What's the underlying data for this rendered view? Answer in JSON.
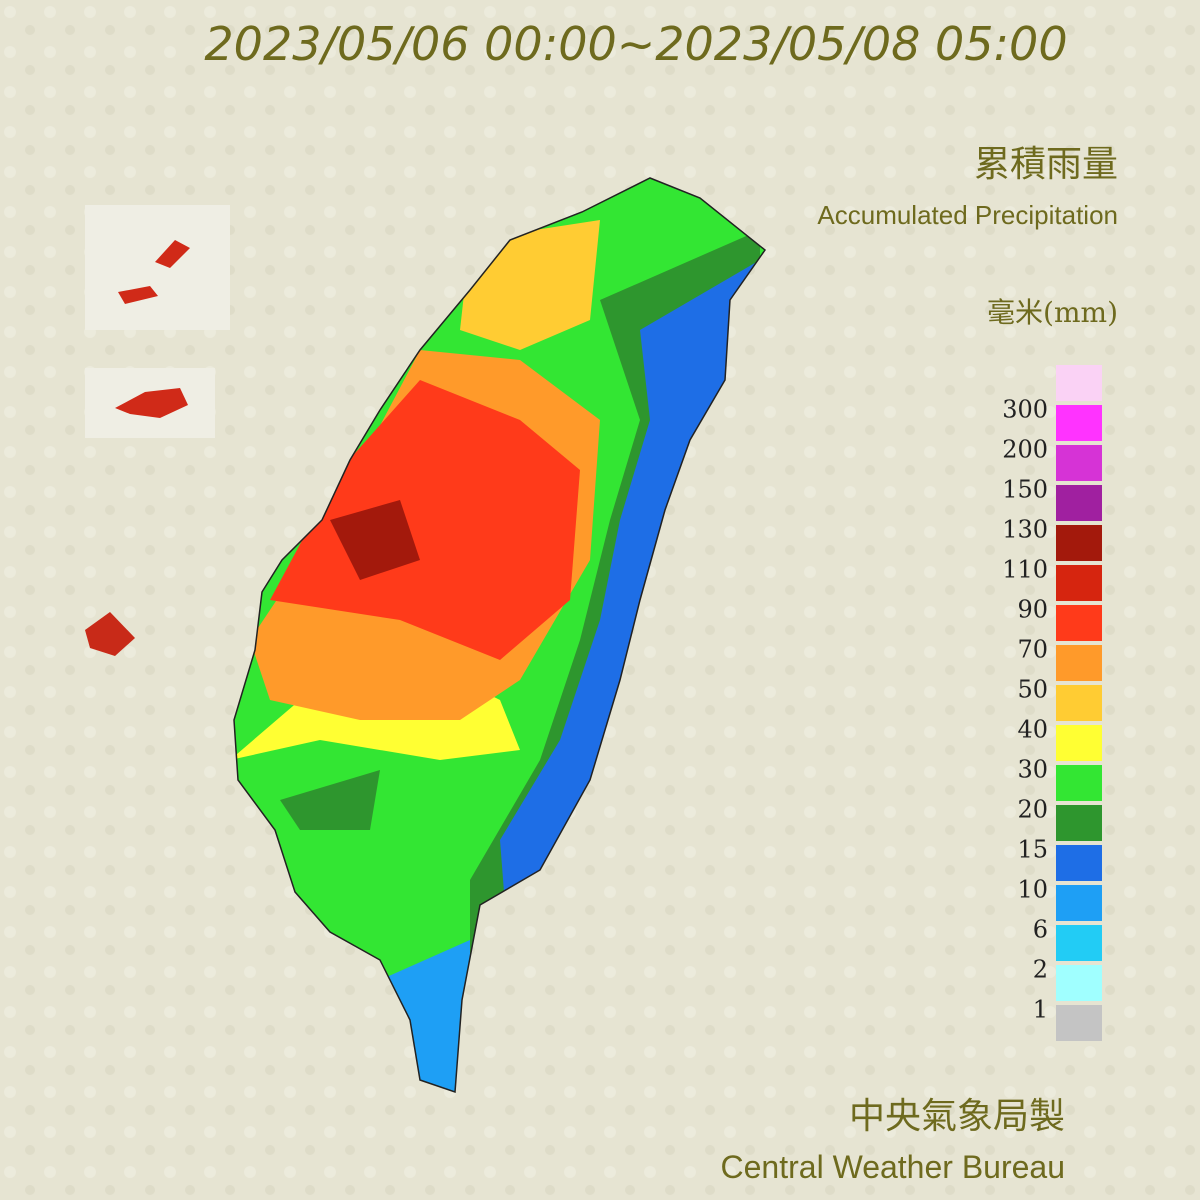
{
  "title": "2023/05/06 00:00~2023/05/08 05:00",
  "legend": {
    "title_zh": "累積雨量",
    "title_en": "Accumulated Precipitation",
    "unit": "毫米(mm)",
    "top_color": "#fad2f5",
    "levels": [
      300,
      200,
      150,
      130,
      110,
      90,
      70,
      50,
      40,
      30,
      20,
      15,
      10,
      6,
      2,
      1
    ],
    "colors": [
      "#ff33ff",
      "#d633d6",
      "#a020a0",
      "#a3190c",
      "#d6250f",
      "#ff3a1a",
      "#ff9a2a",
      "#ffcc33",
      "#ffff33",
      "#33e633",
      "#2e962e",
      "#1e6ee6",
      "#1e9ff5",
      "#22ccf5",
      "#a0ffff",
      "#c4c4c4"
    ]
  },
  "footer": {
    "zh": "中央氣象局製",
    "en": "Central Weather Bureau"
  }
}
